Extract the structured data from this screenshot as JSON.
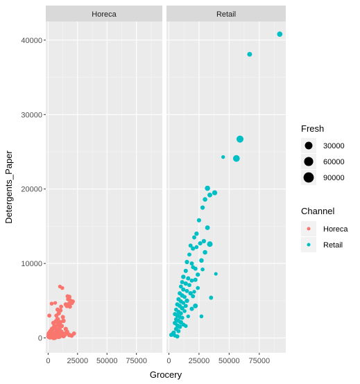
{
  "chart_data": {
    "type": "scatter",
    "facets": [
      "Horeca",
      "Retail"
    ],
    "xlabel": "Grocery",
    "ylabel": "Detergents_Paper",
    "xlim": [
      -2000,
      97000
    ],
    "ylim": [
      -2000,
      42500
    ],
    "x_ticks": [
      0,
      25000,
      50000,
      75000
    ],
    "y_ticks": [
      0,
      10000,
      20000,
      30000,
      40000
    ],
    "grid": true,
    "size_legend": {
      "title": "Fresh",
      "values": [
        30000,
        60000,
        90000
      ]
    },
    "color_legend": {
      "title": "Channel",
      "entries": [
        {
          "name": "Horeca",
          "color": "#F8766D"
        },
        {
          "name": "Retail",
          "color": "#00BFC4"
        }
      ]
    },
    "series": [
      {
        "name": "Horeca",
        "color": "#F8766D",
        "points": [
          [
            500,
            200,
            15000
          ],
          [
            1500,
            150,
            25000
          ],
          [
            3000,
            300,
            18000
          ],
          [
            4000,
            500,
            35000
          ],
          [
            5000,
            600,
            22000
          ],
          [
            6000,
            250,
            40000
          ],
          [
            7000,
            400,
            28000
          ],
          [
            8000,
            700,
            20000
          ],
          [
            9000,
            300,
            45000
          ],
          [
            10000,
            500,
            30000
          ],
          [
            11000,
            800,
            18000
          ],
          [
            12000,
            400,
            25000
          ],
          [
            13000,
            300,
            20000
          ],
          [
            2000,
            900,
            12000
          ],
          [
            3500,
            1200,
            15000
          ],
          [
            5500,
            1500,
            18000
          ],
          [
            7500,
            1000,
            22000
          ],
          [
            8500,
            1800,
            16000
          ],
          [
            9500,
            1300,
            14000
          ],
          [
            6500,
            2200,
            12000
          ],
          [
            4500,
            2000,
            10000
          ],
          [
            8000,
            2500,
            15000
          ],
          [
            10000,
            2100,
            13000
          ],
          [
            11500,
            1600,
            11000
          ],
          [
            12500,
            2800,
            9000
          ],
          [
            7000,
            3000,
            8000
          ],
          [
            9000,
            3300,
            10000
          ],
          [
            10500,
            3700,
            9000
          ],
          [
            11000,
            4200,
            7000
          ],
          [
            15000,
            4500,
            9000
          ],
          [
            16000,
            4300,
            11000
          ],
          [
            17000,
            5200,
            8000
          ],
          [
            18000,
            5500,
            10000
          ],
          [
            19000,
            5000,
            9000
          ],
          [
            20000,
            4700,
            12000
          ],
          [
            21000,
            4900,
            8000
          ],
          [
            17500,
            4600,
            6000
          ],
          [
            16500,
            5600,
            7000
          ],
          [
            18500,
            4200,
            9000
          ],
          [
            10000,
            6900,
            5000
          ],
          [
            12000,
            6700,
            6000
          ],
          [
            3000,
            4600,
            6000
          ],
          [
            6000,
            4700,
            5000
          ],
          [
            1000,
            3000,
            8000
          ],
          [
            2000,
            500,
            70000
          ],
          [
            5000,
            200,
            60000
          ],
          [
            7000,
            350,
            55000
          ],
          [
            14000,
            500,
            20000
          ],
          [
            16000,
            800,
            15000
          ],
          [
            18000,
            400,
            12000
          ],
          [
            20000,
            300,
            10000
          ],
          [
            22000,
            600,
            8000
          ],
          [
            15000,
            1200,
            10000
          ],
          [
            8000,
            3800,
            9000
          ],
          [
            13000,
            2300,
            11000
          ]
        ]
      },
      {
        "name": "Retail",
        "color": "#00BFC4",
        "points": [
          [
            92000,
            40800,
            22000
          ],
          [
            67000,
            38100,
            15000
          ],
          [
            59000,
            26700,
            50000
          ],
          [
            56000,
            24100,
            45000
          ],
          [
            45000,
            24300,
            5000
          ],
          [
            32000,
            20100,
            20000
          ],
          [
            38000,
            19500,
            18000
          ],
          [
            34000,
            19200,
            15000
          ],
          [
            30000,
            18600,
            12000
          ],
          [
            28000,
            17500,
            10000
          ],
          [
            25000,
            15800,
            9000
          ],
          [
            32000,
            14800,
            14000
          ],
          [
            23000,
            14000,
            10000
          ],
          [
            21000,
            13500,
            8000
          ],
          [
            29000,
            13000,
            10000
          ],
          [
            26000,
            12700,
            9000
          ],
          [
            34000,
            12600,
            25000
          ],
          [
            18000,
            12400,
            8000
          ],
          [
            20000,
            12000,
            9000
          ],
          [
            23000,
            12200,
            7000
          ],
          [
            30000,
            11500,
            12000
          ],
          [
            17000,
            11200,
            7000
          ],
          [
            15000,
            10200,
            10000
          ],
          [
            19000,
            10000,
            8000
          ],
          [
            27000,
            10400,
            12000
          ],
          [
            22000,
            9300,
            8000
          ],
          [
            14000,
            9000,
            9000
          ],
          [
            20000,
            9500,
            7000
          ],
          [
            28000,
            9200,
            6000
          ],
          [
            24000,
            8500,
            10000
          ],
          [
            12000,
            8200,
            11000
          ],
          [
            16000,
            8000,
            9000
          ],
          [
            19000,
            7700,
            8000
          ],
          [
            11000,
            7500,
            8000
          ],
          [
            14000,
            7300,
            10000
          ],
          [
            17000,
            7100,
            7000
          ],
          [
            22000,
            7800,
            9000
          ],
          [
            10000,
            6900,
            7000
          ],
          [
            12000,
            6500,
            9000
          ],
          [
            15000,
            6300,
            8000
          ],
          [
            18000,
            6000,
            10000
          ],
          [
            21000,
            6200,
            5000
          ],
          [
            9000,
            6000,
            8000
          ],
          [
            11000,
            5700,
            10000
          ],
          [
            13000,
            5500,
            7000
          ],
          [
            8000,
            5200,
            9000
          ],
          [
            10000,
            4900,
            8000
          ],
          [
            12000,
            4700,
            6000
          ],
          [
            15000,
            5000,
            11000
          ],
          [
            7000,
            4500,
            9000
          ],
          [
            9000,
            4300,
            10000
          ],
          [
            11000,
            4000,
            12000
          ],
          [
            14000,
            4300,
            8000
          ],
          [
            6000,
            3800,
            7000
          ],
          [
            8000,
            3500,
            9000
          ],
          [
            10000,
            3300,
            8000
          ],
          [
            13000,
            3600,
            6000
          ],
          [
            5000,
            3200,
            8000
          ],
          [
            7000,
            3000,
            10000
          ],
          [
            9000,
            2800,
            7000
          ],
          [
            11000,
            2700,
            9000
          ],
          [
            16000,
            2900,
            5000
          ],
          [
            6000,
            2500,
            8000
          ],
          [
            8000,
            2300,
            9000
          ],
          [
            10000,
            2100,
            11000
          ],
          [
            12000,
            1800,
            7000
          ],
          [
            5000,
            2000,
            10000
          ],
          [
            7000,
            1700,
            8000
          ],
          [
            9000,
            1500,
            12000
          ],
          [
            14000,
            1600,
            6000
          ],
          [
            6000,
            1200,
            9000
          ],
          [
            8000,
            900,
            7000
          ],
          [
            4000,
            700,
            10000
          ],
          [
            3000,
            500,
            8000
          ],
          [
            5000,
            300,
            6000
          ],
          [
            7000,
            200,
            9000
          ],
          [
            2000,
            400,
            8000
          ],
          [
            22000,
            4300,
            15000
          ],
          [
            19000,
            3900,
            9000
          ],
          [
            27000,
            2900,
            6000
          ],
          [
            35000,
            5400,
            8000
          ],
          [
            39000,
            8600,
            4000
          ],
          [
            24000,
            6700,
            7000
          ],
          [
            20000,
            5600,
            8000
          ]
        ]
      }
    ]
  }
}
